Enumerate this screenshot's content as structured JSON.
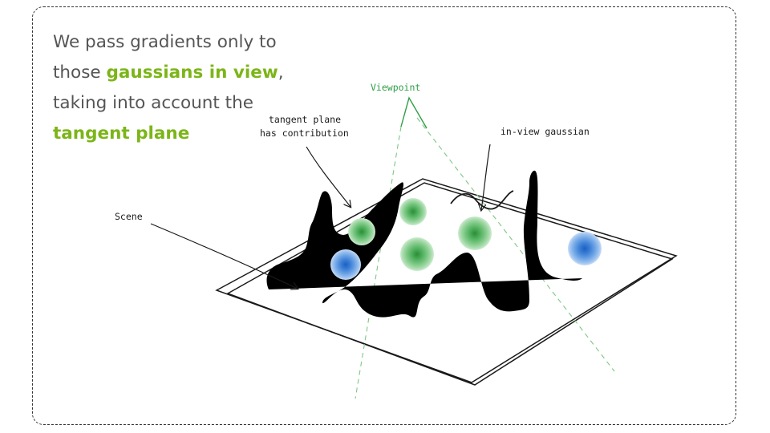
{
  "headline": {
    "part1": "We pass gradients only to those ",
    "highlight1": "gaussians in view",
    "part2": ", taking into account the ",
    "highlight2": "tangent plane"
  },
  "labels": {
    "viewpoint": "Viewpoint",
    "tangent_line1": "tangent plane",
    "tangent_line2": "has contribution",
    "in_view": "in-view gaussian",
    "scene": "Scene"
  },
  "colors": {
    "highlight": "#7cb518",
    "text": "#555555",
    "in_view_gaussian": "#40a050",
    "out_of_view_gaussian": "#3a7ed6",
    "viewpoint_lines": "#2f9e44"
  }
}
